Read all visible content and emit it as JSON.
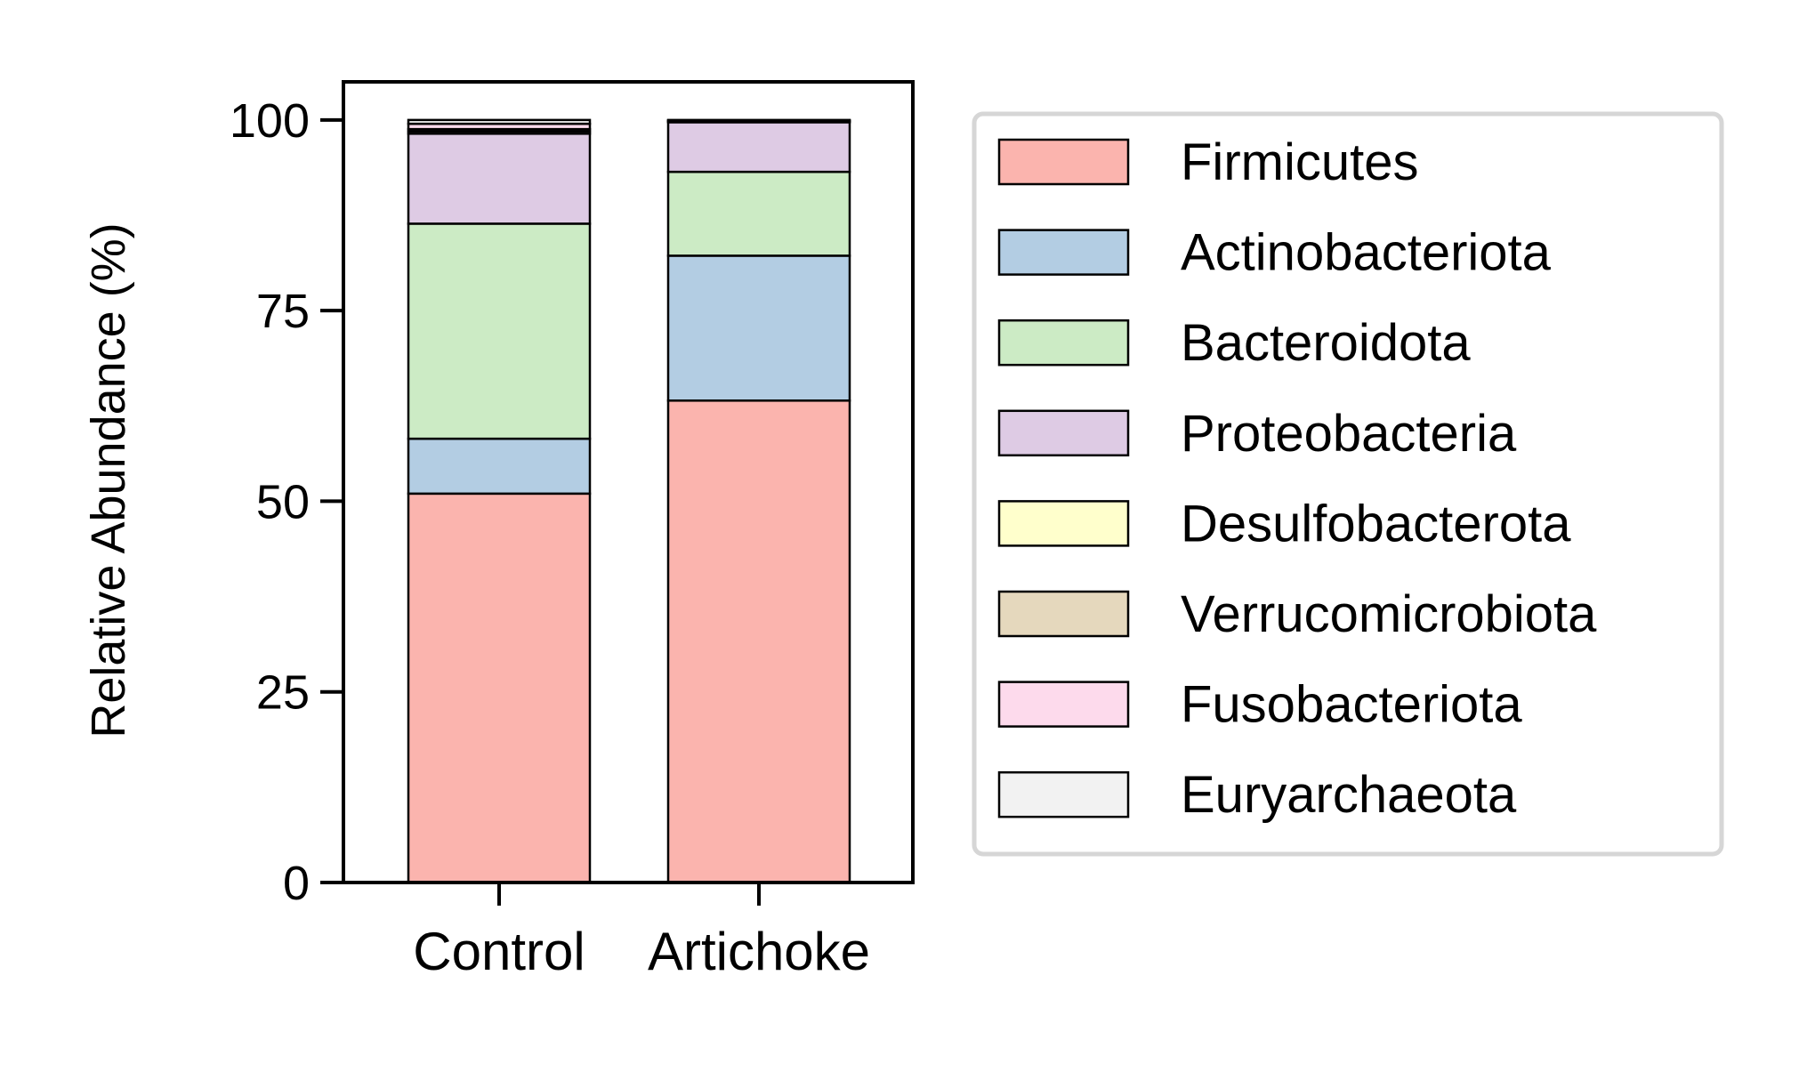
{
  "chart_data": {
    "type": "bar",
    "stacked": true,
    "title": "",
    "xlabel": "",
    "ylabel": "Relative Abundance (%)",
    "ylim": [
      0,
      105
    ],
    "yticks": [
      0,
      25,
      50,
      75,
      100
    ],
    "categories": [
      "Control",
      "Artichoke"
    ],
    "grid": false,
    "legend_position": "right",
    "series": [
      {
        "name": "Firmicutes",
        "color": "#FBB4AE",
        "values": [
          51.0,
          63.2
        ]
      },
      {
        "name": "Actinobacteriota",
        "color": "#B3CDE3",
        "values": [
          7.2,
          19.0
        ]
      },
      {
        "name": "Bacteroidota",
        "color": "#CCEBC5",
        "values": [
          28.2,
          11.0
        ]
      },
      {
        "name": "Proteobacteria",
        "color": "#DECBE4",
        "values": [
          11.8,
          6.5
        ]
      },
      {
        "name": "Desulfobacterota",
        "color": "#FFFFCC",
        "values": [
          0.3,
          0.1
        ]
      },
      {
        "name": "Verrucomicrobiota",
        "color": "#E5D8BD",
        "values": [
          0.3,
          0.05
        ]
      },
      {
        "name": "Fusobacteriota",
        "color": "#FDDAEC",
        "values": [
          0.7,
          0.1
        ]
      },
      {
        "name": "Euryarchaeota",
        "color": "#F2F2F2",
        "values": [
          0.5,
          0.05
        ]
      }
    ]
  }
}
